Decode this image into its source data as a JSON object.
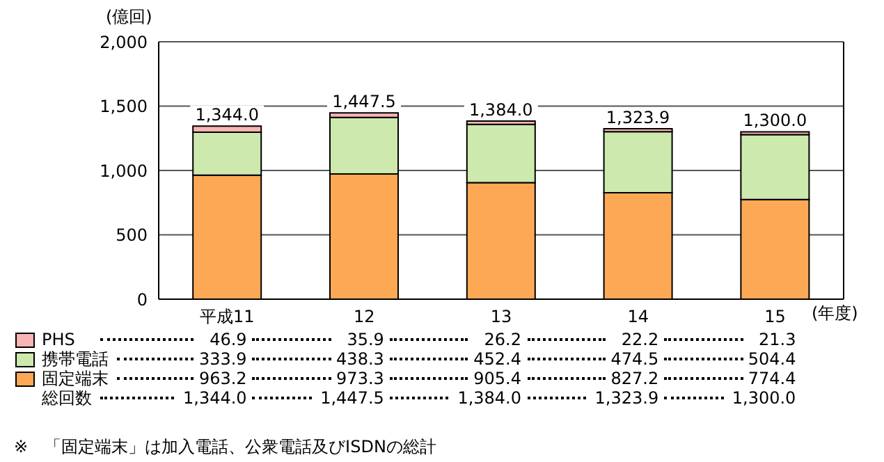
{
  "chart_data": {
    "type": "bar",
    "stacked": true,
    "ylabel": "(億回)",
    "xlabel": "(年度)",
    "categories": [
      "平成11",
      "12",
      "13",
      "14",
      "15"
    ],
    "series": [
      {
        "name": "固定端末",
        "color": "#fca855",
        "values": [
          963.2,
          973.3,
          905.4,
          827.2,
          774.4
        ]
      },
      {
        "name": "携帯電話",
        "color": "#cde9ae",
        "values": [
          333.9,
          438.3,
          452.4,
          474.5,
          504.4
        ]
      },
      {
        "name": "PHS",
        "color": "#f9b4b4",
        "values": [
          46.9,
          35.9,
          26.2,
          22.2,
          21.3
        ]
      }
    ],
    "totals": [
      "1,344.0",
      "1,447.5",
      "1,384.0",
      "1,323.9",
      "1,300.0"
    ],
    "ylim": [
      0,
      2000
    ],
    "yticks": [
      0,
      {
        "value": 500,
        "label": "500"
      },
      {
        "value": 1000,
        "label": "1,000"
      },
      {
        "value": 1500,
        "label": "1,500"
      },
      {
        "value": 2000,
        "label": "2,000"
      }
    ],
    "grid": "y",
    "legend": "bottom",
    "data_labels": true,
    "annotations": [
      "総回数",
      "※　「固定端末」は加入電話、公衆電話及びISDNの総計"
    ]
  }
}
